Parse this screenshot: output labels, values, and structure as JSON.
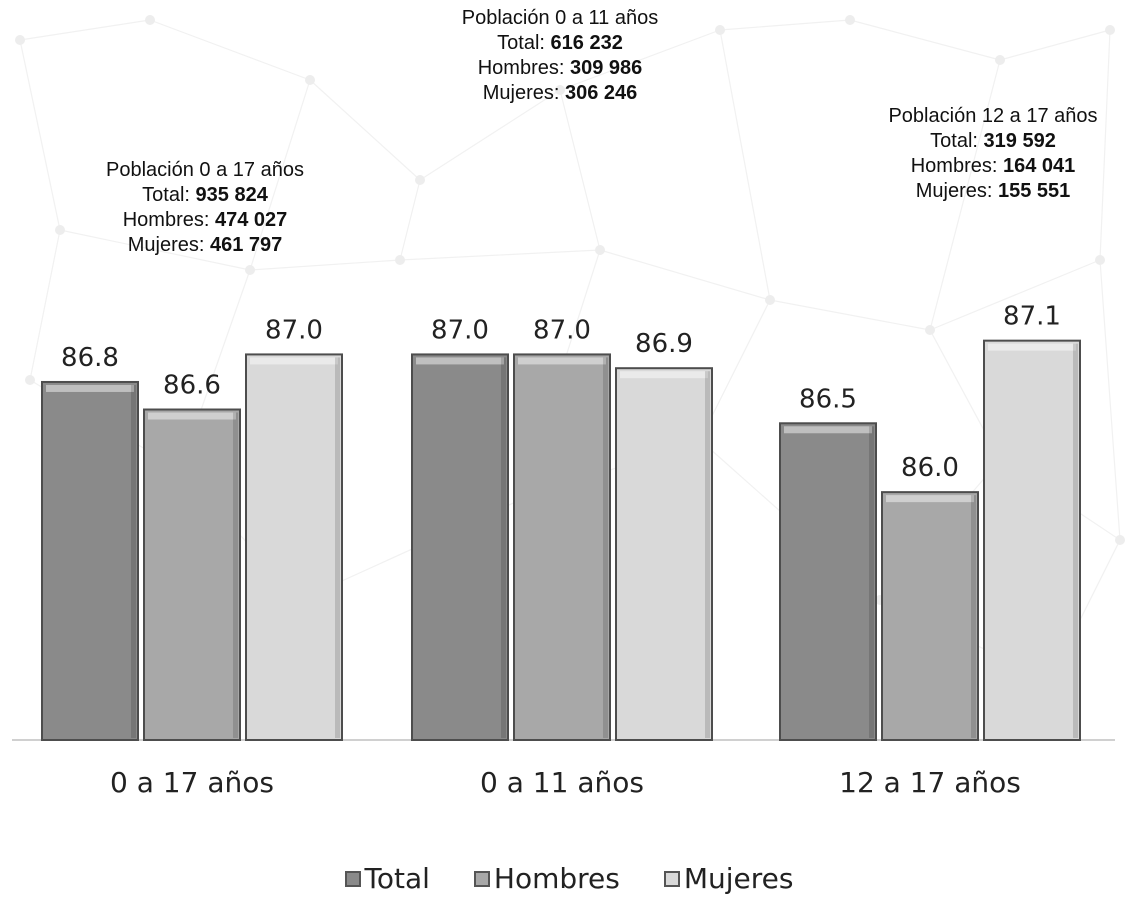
{
  "chart_data": {
    "type": "bar",
    "categories": [
      "0 a 17 años",
      "0 a 11 años",
      "12 a 17 años"
    ],
    "series": [
      {
        "name": "Total",
        "values": [
          86.8,
          87.0,
          86.5
        ],
        "color": "#8a8a8a"
      },
      {
        "name": "Hombres",
        "values": [
          86.6,
          87.0,
          86.0
        ],
        "color": "#a8a8a8"
      },
      {
        "name": "Mujeres",
        "values": [
          87.0,
          86.9,
          87.1
        ],
        "color": "#d9d9d9"
      }
    ],
    "data_labels": [
      [
        "86.8",
        "86.6",
        "87.0"
      ],
      [
        "87.0",
        "87.0",
        "86.9"
      ],
      [
        "86.5",
        "86.0",
        "87.1"
      ]
    ],
    "ylim": [
      84.2,
      87.25
    ],
    "grid": false,
    "legend_position": "bottom"
  },
  "annotations": [
    {
      "title": "Población 0 a 17 años",
      "total_label": "Total:",
      "total": "935 824",
      "hombres_label": "Hombres:",
      "hombres": "474 027",
      "mujeres_label": "Mujeres:",
      "mujeres": "461 797"
    },
    {
      "title": "Población 0 a 11 años",
      "total_label": "Total:",
      "total": "616 232",
      "hombres_label": "Hombres:",
      "hombres": "309 986",
      "mujeres_label": "Mujeres:",
      "mujeres": "306 246"
    },
    {
      "title": "Población 12 a 17 años",
      "total_label": "Total:",
      "total": "319 592",
      "hombres_label": "Hombres:",
      "hombres": "164 041",
      "mujeres_label": "Mujeres:",
      "mujeres": "155 551"
    }
  ],
  "legend": [
    "Total",
    "Hombres",
    "Mujeres"
  ]
}
